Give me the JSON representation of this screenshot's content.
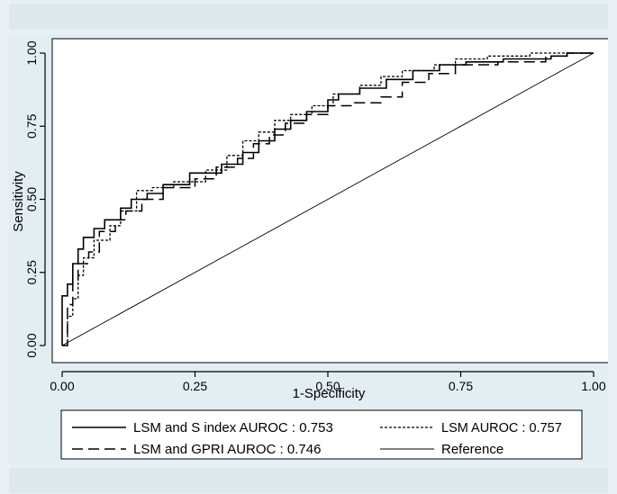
{
  "chart_data": {
    "type": "line",
    "xlabel": "1-Specificity",
    "ylabel": "Sensitivity",
    "xlim": [
      0,
      1
    ],
    "ylim": [
      0,
      1
    ],
    "xticks": [
      "0.00",
      "0.25",
      "0.50",
      "0.75",
      "1.00"
    ],
    "yticks": [
      "0.00",
      "0.25",
      "0.50",
      "0.75",
      "1.00"
    ],
    "grid": false,
    "legend_position": "bottom",
    "series": [
      {
        "name": "LSM and S index AUROC : 0.753",
        "style": "solid",
        "x": [
          0,
          0,
          0.01,
          0.01,
          0.02,
          0.02,
          0.03,
          0.03,
          0.04,
          0.04,
          0.06,
          0.06,
          0.08,
          0.08,
          0.11,
          0.11,
          0.13,
          0.13,
          0.16,
          0.16,
          0.19,
          0.19,
          0.24,
          0.24,
          0.3,
          0.3,
          0.34,
          0.34,
          0.37,
          0.37,
          0.4,
          0.4,
          0.43,
          0.43,
          0.46,
          0.46,
          0.5,
          0.5,
          0.52,
          0.52,
          0.56,
          0.56,
          0.61,
          0.61,
          0.66,
          0.66,
          0.71,
          0.71,
          0.76,
          0.76,
          0.83,
          0.83,
          0.92,
          0.92,
          0.95,
          0.95,
          1
        ],
        "y": [
          0,
          0.17,
          0.17,
          0.21,
          0.21,
          0.28,
          0.28,
          0.33,
          0.33,
          0.37,
          0.37,
          0.4,
          0.4,
          0.43,
          0.43,
          0.47,
          0.47,
          0.5,
          0.5,
          0.52,
          0.52,
          0.55,
          0.55,
          0.59,
          0.59,
          0.62,
          0.62,
          0.66,
          0.66,
          0.7,
          0.7,
          0.74,
          0.74,
          0.77,
          0.77,
          0.8,
          0.8,
          0.84,
          0.84,
          0.86,
          0.86,
          0.88,
          0.88,
          0.91,
          0.91,
          0.94,
          0.94,
          0.96,
          0.96,
          0.97,
          0.97,
          0.98,
          0.98,
          0.99,
          0.99,
          1.0,
          1.0
        ]
      },
      {
        "name": "LSM AUROC : 0.757",
        "style": "dotted",
        "x": [
          0,
          0.01,
          0.01,
          0.02,
          0.02,
          0.03,
          0.03,
          0.04,
          0.04,
          0.06,
          0.06,
          0.09,
          0.09,
          0.11,
          0.11,
          0.14,
          0.14,
          0.17,
          0.17,
          0.21,
          0.21,
          0.27,
          0.27,
          0.31,
          0.31,
          0.34,
          0.34,
          0.37,
          0.37,
          0.4,
          0.4,
          0.43,
          0.43,
          0.47,
          0.47,
          0.51,
          0.51,
          0.56,
          0.56,
          0.6,
          0.6,
          0.64,
          0.64,
          0.7,
          0.7,
          0.74,
          0.74,
          0.8,
          0.8,
          0.88,
          0.88,
          0.94,
          0.94,
          1
        ],
        "y": [
          0,
          0,
          0.1,
          0.1,
          0.16,
          0.16,
          0.24,
          0.24,
          0.3,
          0.3,
          0.36,
          0.36,
          0.41,
          0.41,
          0.46,
          0.46,
          0.53,
          0.53,
          0.54,
          0.54,
          0.56,
          0.56,
          0.6,
          0.6,
          0.65,
          0.65,
          0.7,
          0.7,
          0.73,
          0.73,
          0.77,
          0.77,
          0.79,
          0.79,
          0.82,
          0.82,
          0.86,
          0.86,
          0.89,
          0.89,
          0.92,
          0.92,
          0.94,
          0.94,
          0.96,
          0.96,
          0.98,
          0.98,
          0.99,
          0.99,
          1.0,
          1.0,
          1.0,
          1.0
        ]
      },
      {
        "name": "LSM and GPRI AUROC : 0.746",
        "style": "dashed",
        "x": [
          0,
          0.01,
          0.01,
          0.02,
          0.02,
          0.03,
          0.03,
          0.05,
          0.05,
          0.07,
          0.07,
          0.1,
          0.1,
          0.12,
          0.12,
          0.15,
          0.15,
          0.19,
          0.19,
          0.25,
          0.25,
          0.29,
          0.29,
          0.33,
          0.33,
          0.36,
          0.36,
          0.39,
          0.39,
          0.42,
          0.42,
          0.46,
          0.46,
          0.5,
          0.5,
          0.55,
          0.55,
          0.6,
          0.6,
          0.64,
          0.64,
          0.69,
          0.69,
          0.74,
          0.74,
          0.82,
          0.82,
          0.91,
          0.91,
          0.95,
          0.95,
          1
        ],
        "y": [
          0,
          0,
          0.14,
          0.14,
          0.22,
          0.22,
          0.28,
          0.28,
          0.32,
          0.32,
          0.39,
          0.39,
          0.43,
          0.43,
          0.46,
          0.46,
          0.5,
          0.5,
          0.54,
          0.54,
          0.57,
          0.57,
          0.61,
          0.61,
          0.64,
          0.64,
          0.69,
          0.69,
          0.72,
          0.72,
          0.76,
          0.76,
          0.79,
          0.79,
          0.82,
          0.82,
          0.83,
          0.83,
          0.85,
          0.85,
          0.9,
          0.9,
          0.93,
          0.93,
          0.96,
          0.96,
          0.97,
          0.97,
          0.99,
          0.99,
          1.0,
          1.0
        ]
      },
      {
        "name": "Reference",
        "style": "thin",
        "x": [
          0,
          1
        ],
        "y": [
          0,
          1
        ]
      }
    ]
  }
}
